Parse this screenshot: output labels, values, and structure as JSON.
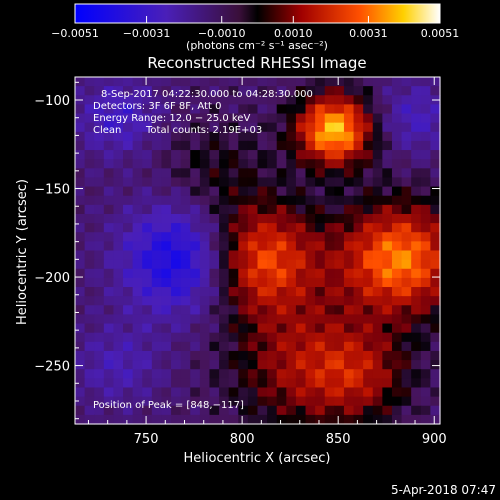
{
  "chart_data": {
    "type": "heatmap",
    "title": "Reconstructed RHESSI Image",
    "xlabel": "Heliocentric X (arcsec)",
    "ylabel": "Heliocentric Y (arcsec)",
    "xlim": [
      713,
      903
    ],
    "ylim": [
      -283,
      -87
    ],
    "x_ticks": [
      750,
      800,
      850,
      900
    ],
    "y_ticks": [
      -100,
      -150,
      -200,
      -250
    ],
    "colorbar": {
      "unit_label": "(photons cm⁻² s⁻¹ asec⁻²)",
      "vmin": -0.0051,
      "vmax": 0.0051,
      "ticks": [
        -0.0051,
        -0.0031,
        -0.001,
        0.001,
        0.0031,
        0.0051
      ],
      "tick_labels": [
        "−0.0051",
        "−0.0031",
        "−0.0010",
        "0.0010",
        "0.0031",
        "0.0051"
      ]
    },
    "sources": [
      {
        "x": 848,
        "y": -117,
        "peak": 1.0,
        "sigma": 14
      },
      {
        "x": 808,
        "y": -190,
        "peak": 0.8,
        "sigma": 22
      },
      {
        "x": 882,
        "y": -190,
        "peak": 0.85,
        "sigma": 22
      },
      {
        "x": 832,
        "y": -250,
        "peak": 0.45,
        "sigma": 26
      },
      {
        "x": 862,
        "y": -255,
        "peak": 0.35,
        "sigma": 18
      },
      {
        "x": 786,
        "y": -140,
        "peak": 0.2,
        "sigma": 20
      },
      {
        "x": 770,
        "y": -190,
        "peak": -0.7,
        "sigma": 22
      },
      {
        "x": 735,
        "y": -110,
        "peak": -0.35,
        "sigma": 15
      },
      {
        "x": 890,
        "y": -110,
        "peak": -0.3,
        "sigma": 14
      },
      {
        "x": 735,
        "y": -250,
        "peak": -0.25,
        "sigma": 16
      }
    ],
    "annotations": {
      "time_range": "8-Sep-2017 04:22:30.000 to 04:28:30.000",
      "detectors": "Detectors: 3F 6F 8F, Att 0",
      "energy": "Energy Range: 12.0 − 25.0 keV",
      "clean": "Clean",
      "total_counts": "Total counts: 2.19E+03",
      "peak_position": "Position of Peak = [848,−117]"
    }
  },
  "footer": {
    "date": "5-Apr-2018 07:47"
  }
}
